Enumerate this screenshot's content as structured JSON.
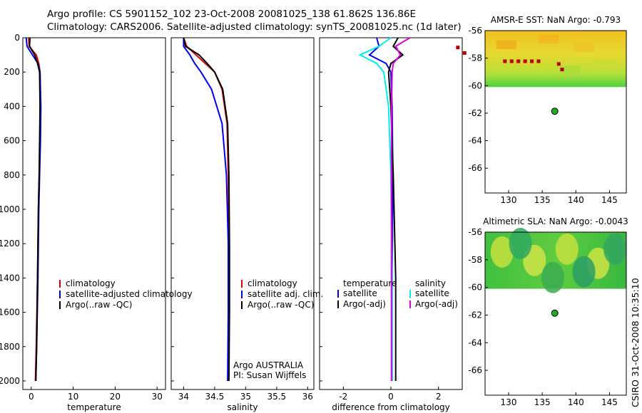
{
  "header": {
    "line1": "Argo profile: CS 5901152_102 23-Oct-2008 20081025_138 61.862S 136.86E",
    "line2": "Climatology: CARS2006. Satellite-adjusted climatology: synTS_20081025.nc (1d later)"
  },
  "signature": "CSIRO 31-Oct-2008 10:35:10",
  "colors": {
    "climatology": "#dd0000",
    "satellite": "#0000ee",
    "argo": "#000000",
    "sal_satellite": "#00eeee",
    "sal_argo": "#dd00dd",
    "float_marker": "#22aa22"
  },
  "chart_data": [
    {
      "type": "line",
      "xlabel": "temperature",
      "ylabel": "",
      "xlim": [
        -2,
        32
      ],
      "ylim": [
        2050,
        0
      ],
      "xticks": [
        "0",
        "10",
        "20",
        "30"
      ],
      "yticks": [
        "0",
        "200",
        "400",
        "600",
        "800",
        "1000",
        "1200",
        "1400",
        "1600",
        "1800",
        "2000"
      ],
      "legend": [
        "climatology",
        "satellite-adjusted climatology",
        "Argo(..raw -QC)"
      ],
      "legend_position": "lower-right",
      "series": [
        {
          "name": "climatology",
          "x": [
            -0.6,
            -0.5,
            1.2,
            1.8,
            2.1,
            2.2,
            2.1,
            1.9,
            1.7,
            1.5,
            1.2,
            1.0
          ],
          "y": [
            0,
            50,
            100,
            150,
            200,
            400,
            600,
            800,
            1000,
            1400,
            1800,
            2000
          ]
        },
        {
          "name": "satellite-adjusted climatology",
          "x": [
            -1.2,
            -1.0,
            0.3,
            1.6,
            2.1,
            2.3,
            2.2,
            2.0,
            1.8,
            1.6,
            1.3,
            1.1
          ],
          "y": [
            0,
            50,
            100,
            150,
            200,
            400,
            600,
            800,
            1000,
            1400,
            1800,
            2000
          ]
        },
        {
          "name": "Argo(..raw -QC)",
          "x": [
            -0.3,
            -0.4,
            0.8,
            1.5,
            2.0,
            2.1,
            2.0,
            1.9,
            1.7,
            1.5,
            1.3,
            1.1
          ],
          "y": [
            0,
            50,
            100,
            150,
            200,
            400,
            600,
            800,
            1000,
            1400,
            1800,
            2000
          ]
        }
      ]
    },
    {
      "type": "line",
      "xlabel": "salinity",
      "xlim": [
        33.8,
        36.1
      ],
      "ylim": [
        2050,
        0
      ],
      "xticks": [
        "34",
        "34.5",
        "35",
        "35.5",
        "36"
      ],
      "legend": [
        "climatology",
        "satellite adj. clim.",
        "Argo(..raw -QC)"
      ],
      "legend_position": "lower-right",
      "annotation": [
        "Argo AUSTRALIA",
        "PI: Susan Wijffels"
      ],
      "series": [
        {
          "name": "climatology",
          "x": [
            34.0,
            34.05,
            34.2,
            34.35,
            34.5,
            34.62,
            34.7,
            34.72,
            34.73,
            34.73,
            34.72
          ],
          "y": [
            0,
            50,
            100,
            150,
            200,
            300,
            500,
            800,
            1200,
            1600,
            2000
          ]
        },
        {
          "name": "satellite adj. clim.",
          "x": [
            34.0,
            34.0,
            34.1,
            34.18,
            34.28,
            34.45,
            34.62,
            34.69,
            34.72,
            34.72,
            34.71
          ],
          "y": [
            0,
            50,
            100,
            150,
            200,
            300,
            500,
            800,
            1200,
            1600,
            2000
          ]
        },
        {
          "name": "Argo(..raw -QC)",
          "x": [
            34.0,
            34.03,
            34.25,
            34.38,
            34.5,
            34.63,
            34.71,
            34.73,
            34.74,
            34.74,
            34.73
          ],
          "y": [
            0,
            50,
            100,
            150,
            200,
            300,
            500,
            800,
            1200,
            1600,
            2000
          ]
        }
      ]
    },
    {
      "type": "line",
      "xlabel": "difference from climatology",
      "xlim": [
        -3,
        3
      ],
      "ylim": [
        2050,
        0
      ],
      "xticks": [
        "-2",
        "0",
        "2"
      ],
      "legend": [
        "temperature",
        "satellite",
        "Argo(-adj)",
        "salinity",
        "satellite",
        "Argo(-adj)"
      ],
      "legend_position": "lower-center",
      "series": [
        {
          "name": "temperature satellite",
          "x": [
            -0.6,
            -0.5,
            -0.9,
            -0.2,
            0.0,
            0.05,
            0.08,
            0.05,
            0.05
          ],
          "y": [
            0,
            50,
            100,
            150,
            200,
            400,
            800,
            1400,
            2000
          ]
        },
        {
          "name": "temperature Argo(-adj)",
          "x": [
            0.3,
            0.1,
            0.5,
            0.0,
            -0.1,
            0.0,
            0.1,
            0.2,
            0.2
          ],
          "y": [
            0,
            50,
            100,
            150,
            200,
            400,
            800,
            1400,
            2000
          ]
        },
        {
          "name": "salinity satellite",
          "x": [
            0.0,
            -0.5,
            -1.3,
            -0.6,
            -0.3,
            -0.1,
            0.0,
            0.05,
            0.05
          ],
          "y": [
            0,
            50,
            100,
            150,
            200,
            400,
            800,
            1400,
            2000
          ]
        },
        {
          "name": "salinity Argo(-adj)",
          "x": [
            0.8,
            0.2,
            0.4,
            0.1,
            0.05,
            0.03,
            0.02,
            0.02,
            0.02
          ],
          "y": [
            0,
            50,
            100,
            150,
            200,
            400,
            800,
            1400,
            2000
          ]
        }
      ]
    },
    {
      "type": "heatmap",
      "title": "AMSR-E SST: NaN Argo: -0.793",
      "xlim": [
        126.5,
        147.5
      ],
      "ylim": [
        -67.8,
        -56
      ],
      "xticks": [
        "130",
        "135",
        "140",
        "145"
      ],
      "yticks": [
        "-56",
        "-58",
        "-60",
        "-62",
        "-64",
        "-66"
      ],
      "data_extent_lat": [
        -60.1,
        -56
      ],
      "marker": {
        "lon": 136.86,
        "lat": -61.862
      }
    },
    {
      "type": "heatmap",
      "title": "Altimetric SLA: NaN Argo: -0.0043",
      "xlim": [
        126.5,
        147.5
      ],
      "ylim": [
        -67.8,
        -56
      ],
      "xticks": [
        "130",
        "135",
        "140",
        "145"
      ],
      "yticks": [
        "-56",
        "-58",
        "-60",
        "-62",
        "-64",
        "-66"
      ],
      "data_extent_lat": [
        -60.1,
        -56
      ],
      "marker": {
        "lon": 136.86,
        "lat": -61.862
      }
    }
  ]
}
